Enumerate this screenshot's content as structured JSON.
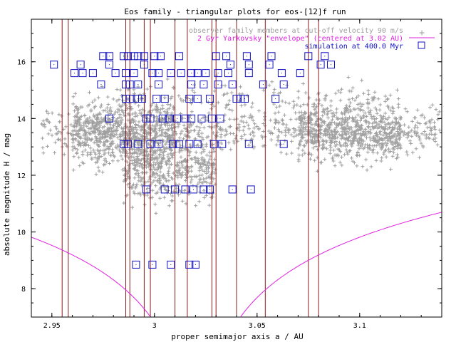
{
  "chart_data": {
    "type": "scatter",
    "title": "Eos family - triangular plots for eos-[12]f run",
    "xlabel": "proper semimajor axis a / AU",
    "ylabel": "absolute magnitude H / mag",
    "xlim": [
      2.94,
      3.14
    ],
    "ylim": [
      7,
      17.5
    ],
    "xticks": [
      2.95,
      3.0,
      3.05,
      3.1
    ],
    "xtick_labels": [
      "2.95",
      "3",
      "3.05",
      "3.1"
    ],
    "yticks": [
      8,
      10,
      12,
      14,
      16
    ],
    "ytick_labels": [
      "8",
      "10",
      "12",
      "14",
      "16"
    ],
    "grid": false,
    "legend_position": "top-right",
    "series": [
      {
        "name": "observer family members at cut-off velocity 90 m/s",
        "marker": "plus",
        "color": "#a0a0a0",
        "clusters": [
          {
            "x_range": [
              2.945,
              3.14
            ],
            "y_center": 13.6,
            "y_spread": 0.55,
            "count": 700
          },
          {
            "x_range": [
              2.96,
              3.01
            ],
            "y_center": 13.5,
            "y_spread": 0.8,
            "count": 700
          },
          {
            "x_range": [
              3.07,
              3.12
            ],
            "y_center": 13.5,
            "y_spread": 0.75,
            "count": 600
          },
          {
            "x_range": [
              2.985,
              3.03
            ],
            "y_center": 12.3,
            "y_spread": 0.9,
            "count": 500
          },
          {
            "x_range": [
              2.98,
              3.12
            ],
            "y_center": 14.7,
            "y_spread": 0.4,
            "count": 150
          }
        ]
      },
      {
        "name": "2 Gyr Yarkovsky \"envelope\" (centered at 3.02 AU)",
        "color": "#e020e0",
        "center": 3.02,
        "h_offset": 15.3,
        "h_scale": 5.0,
        "x_range": [
          2.94,
          3.14
        ]
      },
      {
        "name": "simulation at 400.0 Myr",
        "marker": "square",
        "color": "#1010c0",
        "points": [
          {
            "y": 16.2,
            "x": [
              2.975,
              2.978,
              2.985,
              2.987,
              2.99,
              2.992,
              2.995,
              3.0,
              3.003,
              3.012,
              3.03,
              3.035,
              3.045,
              3.057,
              3.075,
              3.083
            ]
          },
          {
            "y": 15.9,
            "x": [
              2.951,
              2.964,
              2.978,
              2.995,
              3.037,
              3.046,
              3.056,
              3.081,
              3.086
            ]
          },
          {
            "y": 15.6,
            "x": [
              2.961,
              2.965,
              2.97,
              2.981,
              2.986,
              2.99,
              2.999,
              3.002,
              3.008,
              3.013,
              3.018,
              3.021,
              3.025,
              3.031,
              3.036,
              3.046,
              3.062,
              3.071
            ]
          },
          {
            "y": 15.2,
            "x": [
              2.974,
              2.986,
              2.988,
              2.992,
              3.002,
              3.018,
              3.024,
              3.031,
              3.038,
              3.053,
              3.063
            ]
          },
          {
            "y": 14.7,
            "x": [
              2.986,
              2.988,
              2.992,
              2.994,
              3.001,
              3.005,
              3.017,
              3.021,
              3.027,
              3.04,
              3.042,
              3.044,
              3.059
            ]
          },
          {
            "y": 14.0,
            "x": [
              2.978,
              2.996,
              2.998,
              3.004,
              3.007,
              3.011,
              3.015,
              3.018,
              3.023,
              3.028,
              3.032
            ]
          },
          {
            "y": 13.1,
            "x": [
              2.985,
              2.987,
              2.992,
              2.998,
              3.002,
              3.009,
              3.012,
              3.017,
              3.021,
              3.029,
              3.033,
              3.046,
              3.063
            ]
          },
          {
            "y": 11.5,
            "x": [
              2.996,
              3.005,
              3.01,
              3.015,
              3.019,
              3.024,
              3.027,
              3.038,
              3.047
            ]
          },
          {
            "y": 8.85,
            "x": [
              2.991,
              2.999,
              3.008,
              3.017,
              3.02
            ]
          }
        ]
      }
    ],
    "vertical_lines": {
      "color": "#8b1a1a",
      "x": [
        2.955,
        2.958,
        2.986,
        2.988,
        2.995,
        2.998,
        3.01,
        3.016,
        3.028,
        3.03,
        3.04,
        3.054,
        3.075,
        3.08
      ]
    }
  }
}
